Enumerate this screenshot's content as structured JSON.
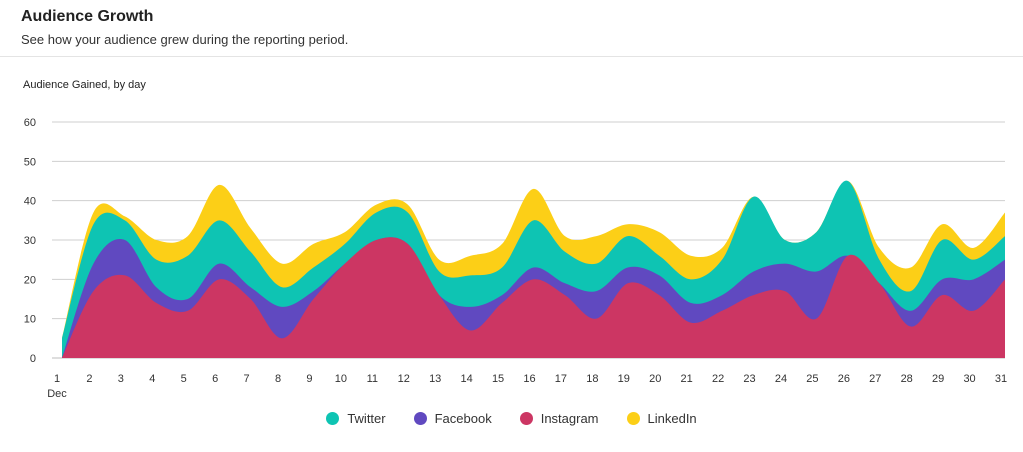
{
  "header": {
    "title": "Audience Growth",
    "subtitle": "See how your audience grew during the reporting period."
  },
  "chart_data": {
    "type": "area",
    "stacked": true,
    "title": "Audience Gained, by day",
    "xlabel": "",
    "ylabel": "",
    "x": [
      1,
      2,
      3,
      4,
      5,
      6,
      7,
      8,
      9,
      10,
      11,
      12,
      13,
      14,
      15,
      16,
      17,
      18,
      19,
      20,
      21,
      22,
      23,
      24,
      25,
      26,
      27,
      28,
      29,
      30,
      31
    ],
    "x_month_label": "Dec",
    "ylim": [
      0,
      60
    ],
    "yticks": [
      0,
      10,
      20,
      30,
      40,
      50,
      60
    ],
    "grid": true,
    "legend_position": "bottom-center",
    "series": [
      {
        "name": "Instagram",
        "color": "#cc3663",
        "values": [
          0,
          17,
          21,
          14,
          12,
          20,
          15,
          5,
          15,
          24,
          30,
          29,
          16,
          7,
          14,
          20,
          16,
          10,
          19,
          16,
          9,
          12,
          16,
          17,
          10,
          26,
          19,
          8,
          16,
          12,
          20
        ]
      },
      {
        "name": "Facebook",
        "color": "#6049c0",
        "values": [
          0,
          7,
          9,
          4,
          3,
          4,
          3,
          8,
          2,
          0,
          0,
          0,
          0,
          6,
          2,
          3,
          3,
          7,
          4,
          5,
          5,
          4,
          6,
          7,
          12,
          0,
          0,
          4,
          4,
          8,
          5
        ]
      },
      {
        "name": "Twitter",
        "color": "#0ec4b3",
        "values": [
          5,
          10,
          5,
          7,
          11,
          11,
          9,
          5,
          6,
          5,
          7,
          8,
          6,
          8,
          7,
          12,
          8,
          7,
          8,
          5,
          6,
          9,
          19,
          6,
          10,
          19,
          6,
          5,
          10,
          5,
          6
        ]
      },
      {
        "name": "LinkedIn",
        "color": "#fccf17",
        "values": [
          0,
          3,
          1,
          5,
          5,
          9,
          6,
          6,
          6,
          3,
          2,
          2,
          3,
          5,
          6,
          8,
          4,
          7,
          3,
          6,
          6,
          3,
          0,
          0,
          0,
          0,
          3,
          6,
          4,
          3,
          6
        ]
      }
    ]
  },
  "legend": {
    "items": [
      {
        "label": "Twitter",
        "color": "#0ec4b3"
      },
      {
        "label": "Facebook",
        "color": "#6049c0"
      },
      {
        "label": "Instagram",
        "color": "#cc3663"
      },
      {
        "label": "LinkedIn",
        "color": "#fccf17"
      }
    ]
  }
}
